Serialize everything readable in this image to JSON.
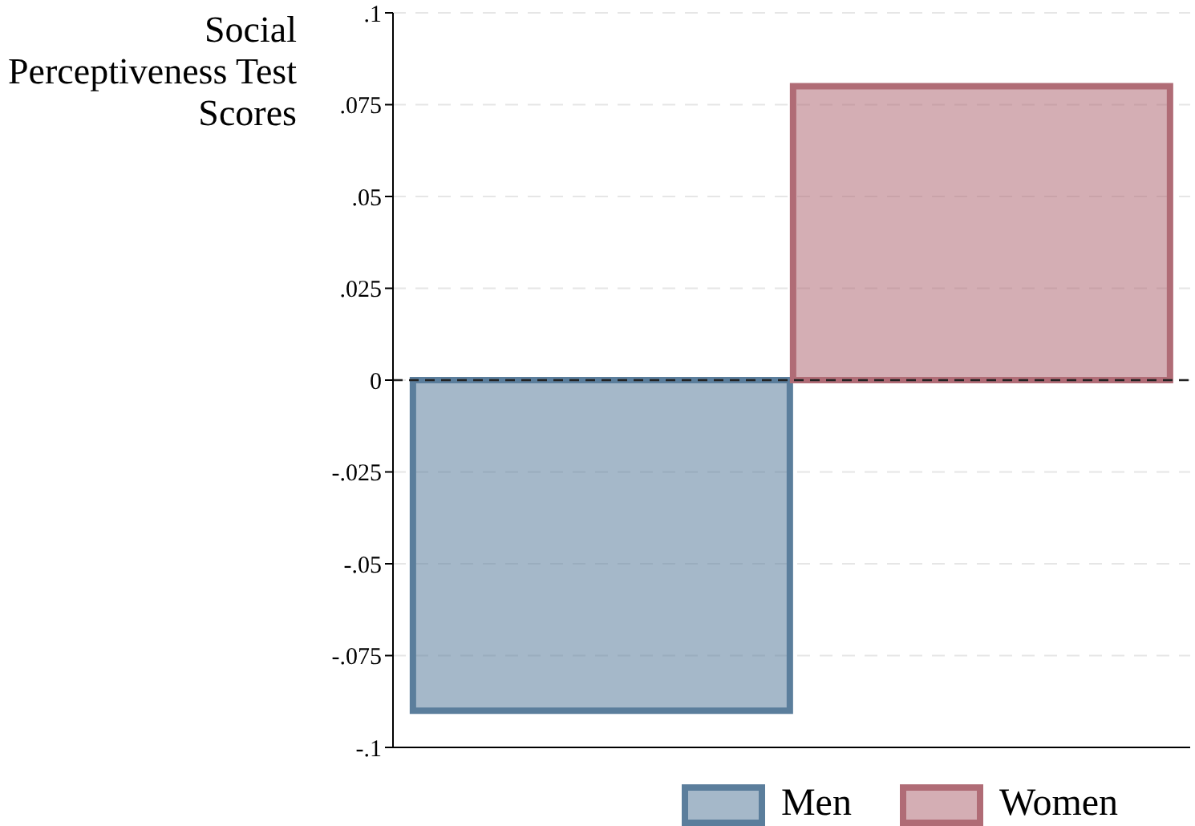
{
  "chart_data": {
    "type": "bar",
    "ylabel": "Social Perceptiveness Test Scores",
    "categories": [
      null
    ],
    "series": [
      {
        "name": "Men",
        "color": "#5b7e9c",
        "values": [
          -0.09
        ]
      },
      {
        "name": "Women",
        "color": "#b06c76",
        "values": [
          0.08
        ]
      }
    ],
    "ylim": [
      -0.1,
      0.1
    ],
    "yticks": [
      {
        "value": -0.1,
        "label": "-.1"
      },
      {
        "value": -0.075,
        "label": "-.075"
      },
      {
        "value": -0.05,
        "label": "-.05"
      },
      {
        "value": -0.025,
        "label": "-.025"
      },
      0,
      {
        "value": 0.025,
        "label": ".025"
      },
      {
        "value": 0.05,
        "label": ".05"
      },
      {
        "value": 0.075,
        "label": ".075"
      },
      {
        "value": 0.1,
        "label": ".1"
      }
    ],
    "ref_lines": [
      {
        "axis": "y",
        "value": 0,
        "color": "#222222",
        "line_style": "dashed"
      }
    ],
    "grid": "y",
    "legend": "bottom"
  }
}
